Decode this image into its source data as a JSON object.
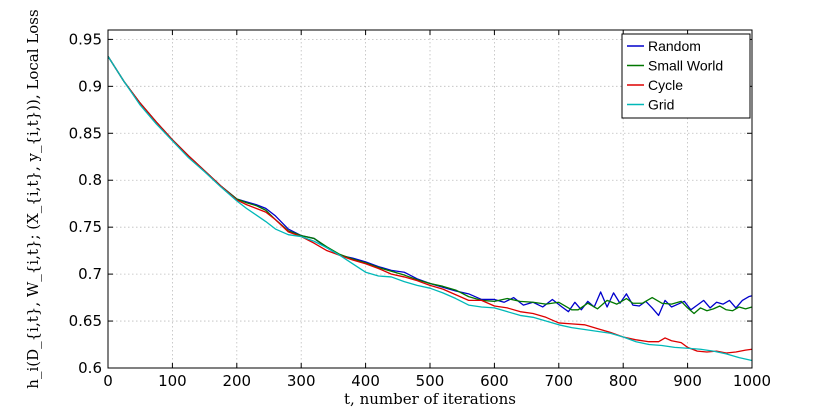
{
  "chart_data": {
    "type": "line",
    "title": "",
    "xlabel": "t, number of iterations",
    "ylabel": "h_i(D_{i,t}, W_{i,t}; (X_{i,t}, y_{i,t})), Local Loss",
    "xlim": [
      0,
      1000
    ],
    "ylim": [
      0.6,
      0.96
    ],
    "x_ticks": [
      0,
      100,
      200,
      300,
      400,
      500,
      600,
      700,
      800,
      900,
      1000
    ],
    "y_ticks": [
      0.6,
      0.65,
      0.7,
      0.75,
      0.8,
      0.85,
      0.9,
      0.95
    ],
    "y_tick_labels": [
      "0.6",
      "0.65",
      "0.7",
      "0.75",
      "0.8",
      "0.85",
      "0.9",
      "0.95"
    ],
    "grid": true,
    "legend_position": "top-right",
    "series": [
      {
        "name": "Random",
        "color": "#0000cc",
        "points": [
          [
            0,
            0.932
          ],
          [
            25,
            0.905
          ],
          [
            50,
            0.882
          ],
          [
            75,
            0.862
          ],
          [
            100,
            0.843
          ],
          [
            125,
            0.826
          ],
          [
            150,
            0.81
          ],
          [
            175,
            0.794
          ],
          [
            200,
            0.78
          ],
          [
            215,
            0.777
          ],
          [
            230,
            0.774
          ],
          [
            245,
            0.77
          ],
          [
            260,
            0.762
          ],
          [
            280,
            0.748
          ],
          [
            300,
            0.741
          ],
          [
            320,
            0.738
          ],
          [
            340,
            0.728
          ],
          [
            360,
            0.72
          ],
          [
            380,
            0.717
          ],
          [
            400,
            0.713
          ],
          [
            420,
            0.708
          ],
          [
            440,
            0.704
          ],
          [
            460,
            0.702
          ],
          [
            480,
            0.695
          ],
          [
            500,
            0.69
          ],
          [
            520,
            0.686
          ],
          [
            540,
            0.682
          ],
          [
            560,
            0.679
          ],
          [
            580,
            0.673
          ],
          [
            600,
            0.673
          ],
          [
            615,
            0.67
          ],
          [
            630,
            0.675
          ],
          [
            645,
            0.667
          ],
          [
            660,
            0.67
          ],
          [
            675,
            0.665
          ],
          [
            690,
            0.673
          ],
          [
            705,
            0.665
          ],
          [
            715,
            0.66
          ],
          [
            725,
            0.67
          ],
          [
            735,
            0.662
          ],
          [
            745,
            0.671
          ],
          [
            755,
            0.665
          ],
          [
            765,
            0.681
          ],
          [
            775,
            0.665
          ],
          [
            785,
            0.68
          ],
          [
            795,
            0.669
          ],
          [
            805,
            0.679
          ],
          [
            815,
            0.667
          ],
          [
            825,
            0.666
          ],
          [
            835,
            0.671
          ],
          [
            845,
            0.664
          ],
          [
            855,
            0.656
          ],
          [
            865,
            0.672
          ],
          [
            875,
            0.665
          ],
          [
            885,
            0.668
          ],
          [
            895,
            0.671
          ],
          [
            905,
            0.662
          ],
          [
            915,
            0.667
          ],
          [
            925,
            0.672
          ],
          [
            935,
            0.664
          ],
          [
            945,
            0.67
          ],
          [
            955,
            0.668
          ],
          [
            965,
            0.672
          ],
          [
            975,
            0.664
          ],
          [
            985,
            0.672
          ],
          [
            995,
            0.676
          ],
          [
            1000,
            0.677
          ]
        ]
      },
      {
        "name": "Small World",
        "color": "#007700",
        "points": [
          [
            0,
            0.932
          ],
          [
            25,
            0.905
          ],
          [
            50,
            0.882
          ],
          [
            75,
            0.862
          ],
          [
            100,
            0.843
          ],
          [
            125,
            0.826
          ],
          [
            150,
            0.81
          ],
          [
            175,
            0.794
          ],
          [
            200,
            0.78
          ],
          [
            215,
            0.776
          ],
          [
            230,
            0.773
          ],
          [
            245,
            0.768
          ],
          [
            260,
            0.758
          ],
          [
            280,
            0.746
          ],
          [
            300,
            0.741
          ],
          [
            320,
            0.738
          ],
          [
            340,
            0.729
          ],
          [
            360,
            0.721
          ],
          [
            380,
            0.716
          ],
          [
            400,
            0.712
          ],
          [
            420,
            0.707
          ],
          [
            440,
            0.703
          ],
          [
            460,
            0.699
          ],
          [
            480,
            0.694
          ],
          [
            500,
            0.69
          ],
          [
            520,
            0.687
          ],
          [
            540,
            0.683
          ],
          [
            560,
            0.676
          ],
          [
            580,
            0.672
          ],
          [
            600,
            0.671
          ],
          [
            620,
            0.674
          ],
          [
            640,
            0.671
          ],
          [
            660,
            0.67
          ],
          [
            680,
            0.668
          ],
          [
            700,
            0.67
          ],
          [
            720,
            0.662
          ],
          [
            730,
            0.662
          ],
          [
            745,
            0.669
          ],
          [
            760,
            0.663
          ],
          [
            775,
            0.672
          ],
          [
            790,
            0.668
          ],
          [
            805,
            0.674
          ],
          [
            815,
            0.669
          ],
          [
            830,
            0.669
          ],
          [
            845,
            0.675
          ],
          [
            860,
            0.669
          ],
          [
            875,
            0.668
          ],
          [
            890,
            0.671
          ],
          [
            900,
            0.664
          ],
          [
            910,
            0.658
          ],
          [
            920,
            0.664
          ],
          [
            930,
            0.661
          ],
          [
            940,
            0.663
          ],
          [
            950,
            0.666
          ],
          [
            960,
            0.662
          ],
          [
            970,
            0.661
          ],
          [
            980,
            0.665
          ],
          [
            990,
            0.663
          ],
          [
            1000,
            0.665
          ]
        ]
      },
      {
        "name": "Cycle",
        "color": "#dd0000",
        "points": [
          [
            0,
            0.932
          ],
          [
            25,
            0.905
          ],
          [
            50,
            0.882
          ],
          [
            75,
            0.862
          ],
          [
            100,
            0.843
          ],
          [
            125,
            0.826
          ],
          [
            150,
            0.81
          ],
          [
            175,
            0.794
          ],
          [
            200,
            0.779
          ],
          [
            215,
            0.774
          ],
          [
            230,
            0.77
          ],
          [
            245,
            0.766
          ],
          [
            260,
            0.758
          ],
          [
            280,
            0.745
          ],
          [
            300,
            0.74
          ],
          [
            320,
            0.733
          ],
          [
            340,
            0.725
          ],
          [
            360,
            0.72
          ],
          [
            380,
            0.715
          ],
          [
            400,
            0.711
          ],
          [
            420,
            0.706
          ],
          [
            440,
            0.7
          ],
          [
            460,
            0.697
          ],
          [
            480,
            0.693
          ],
          [
            500,
            0.688
          ],
          [
            520,
            0.684
          ],
          [
            540,
            0.678
          ],
          [
            560,
            0.672
          ],
          [
            580,
            0.672
          ],
          [
            600,
            0.666
          ],
          [
            620,
            0.664
          ],
          [
            640,
            0.66
          ],
          [
            660,
            0.658
          ],
          [
            680,
            0.654
          ],
          [
            700,
            0.648
          ],
          [
            720,
            0.647
          ],
          [
            740,
            0.646
          ],
          [
            760,
            0.642
          ],
          [
            780,
            0.638
          ],
          [
            800,
            0.633
          ],
          [
            820,
            0.63
          ],
          [
            840,
            0.628
          ],
          [
            855,
            0.628
          ],
          [
            865,
            0.632
          ],
          [
            875,
            0.629
          ],
          [
            890,
            0.627
          ],
          [
            900,
            0.622
          ],
          [
            915,
            0.618
          ],
          [
            930,
            0.617
          ],
          [
            945,
            0.618
          ],
          [
            960,
            0.616
          ],
          [
            975,
            0.617
          ],
          [
            990,
            0.619
          ],
          [
            1000,
            0.62
          ]
        ]
      },
      {
        "name": "Grid",
        "color": "#00b8b8",
        "points": [
          [
            0,
            0.932
          ],
          [
            25,
            0.905
          ],
          [
            50,
            0.88
          ],
          [
            75,
            0.86
          ],
          [
            100,
            0.842
          ],
          [
            125,
            0.824
          ],
          [
            150,
            0.809
          ],
          [
            175,
            0.793
          ],
          [
            200,
            0.778
          ],
          [
            215,
            0.77
          ],
          [
            230,
            0.763
          ],
          [
            245,
            0.756
          ],
          [
            260,
            0.748
          ],
          [
            280,
            0.742
          ],
          [
            300,
            0.74
          ],
          [
            320,
            0.735
          ],
          [
            340,
            0.728
          ],
          [
            360,
            0.72
          ],
          [
            380,
            0.711
          ],
          [
            400,
            0.702
          ],
          [
            420,
            0.698
          ],
          [
            440,
            0.697
          ],
          [
            460,
            0.692
          ],
          [
            480,
            0.688
          ],
          [
            500,
            0.685
          ],
          [
            520,
            0.68
          ],
          [
            540,
            0.674
          ],
          [
            560,
            0.667
          ],
          [
            580,
            0.665
          ],
          [
            600,
            0.664
          ],
          [
            620,
            0.66
          ],
          [
            640,
            0.656
          ],
          [
            660,
            0.654
          ],
          [
            680,
            0.65
          ],
          [
            700,
            0.646
          ],
          [
            720,
            0.643
          ],
          [
            740,
            0.641
          ],
          [
            760,
            0.639
          ],
          [
            780,
            0.637
          ],
          [
            800,
            0.633
          ],
          [
            820,
            0.628
          ],
          [
            840,
            0.625
          ],
          [
            860,
            0.624
          ],
          [
            880,
            0.622
          ],
          [
            900,
            0.621
          ],
          [
            920,
            0.62
          ],
          [
            940,
            0.618
          ],
          [
            960,
            0.615
          ],
          [
            980,
            0.611
          ],
          [
            1000,
            0.608
          ]
        ]
      }
    ]
  }
}
